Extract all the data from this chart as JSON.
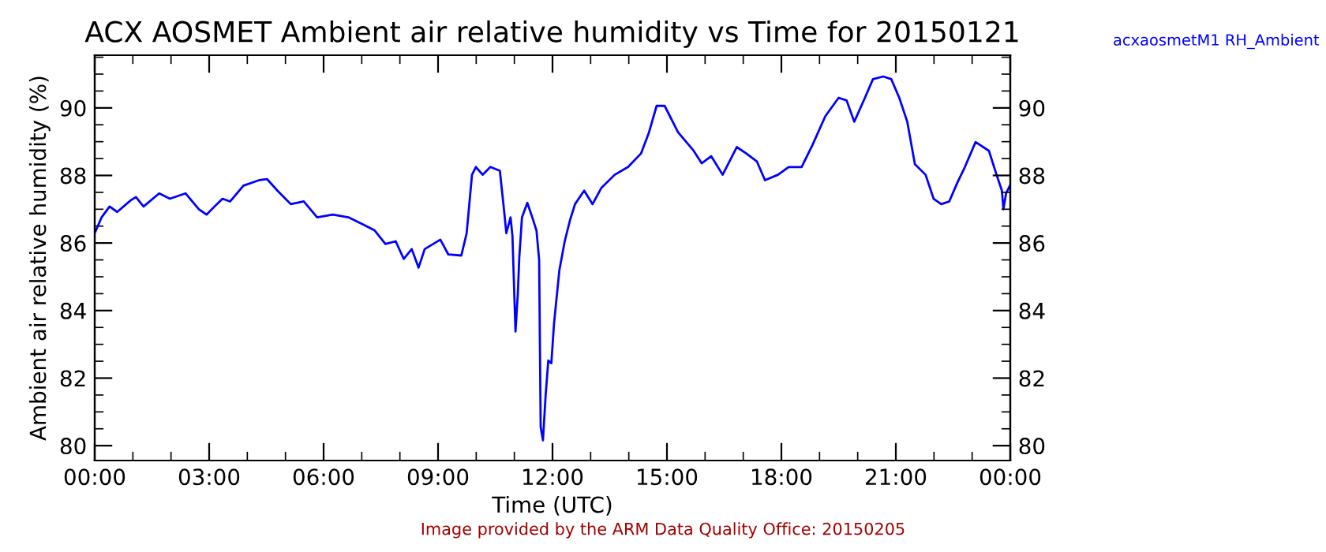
{
  "chart_data": {
    "type": "line",
    "title": "ACX AOSMET Ambient air relative humidity vs Time for 20150121",
    "xlabel": "Time (UTC)",
    "ylabel": "Ambient air relative humidity (%)",
    "annotations": [
      "Image provided by the ARM Data Quality Office: 20150205"
    ],
    "legend": "top right",
    "grid": false,
    "xlim": [
      0,
      24
    ],
    "ylim": [
      79.56,
      91.56
    ],
    "xticks": [
      {
        "value": 0,
        "label": "00:00"
      },
      {
        "value": 1,
        "label": null
      },
      {
        "value": 2,
        "label": null
      },
      {
        "value": 3,
        "label": "03:00"
      },
      {
        "value": 4,
        "label": null
      },
      {
        "value": 5,
        "label": null
      },
      {
        "value": 6,
        "label": "06:00"
      },
      {
        "value": 7,
        "label": null
      },
      {
        "value": 8,
        "label": null
      },
      {
        "value": 9,
        "label": "09:00"
      },
      {
        "value": 10,
        "label": null
      },
      {
        "value": 11,
        "label": null
      },
      {
        "value": 12,
        "label": "12:00"
      },
      {
        "value": 13,
        "label": null
      },
      {
        "value": 14,
        "label": null
      },
      {
        "value": 15,
        "label": "15:00"
      },
      {
        "value": 16,
        "label": null
      },
      {
        "value": 17,
        "label": null
      },
      {
        "value": 18,
        "label": "18:00"
      },
      {
        "value": 19,
        "label": null
      },
      {
        "value": 20,
        "label": null
      },
      {
        "value": 21,
        "label": "21:00"
      },
      {
        "value": 22,
        "label": null
      },
      {
        "value": 23,
        "label": null
      },
      {
        "value": 24,
        "label": "00:00"
      }
    ],
    "yticks": [
      80,
      {
        "value": 80.5,
        "label": null
      },
      {
        "value": 81,
        "label": null
      },
      {
        "value": 81.5,
        "label": null
      },
      82,
      {
        "value": 82.5,
        "label": null
      },
      {
        "value": 83,
        "label": null
      },
      {
        "value": 83.5,
        "label": null
      },
      84,
      {
        "value": 84.5,
        "label": null
      },
      {
        "value": 85,
        "label": null
      },
      {
        "value": 85.5,
        "label": null
      },
      86,
      {
        "value": 86.5,
        "label": null
      },
      {
        "value": 87,
        "label": null
      },
      {
        "value": 87.5,
        "label": null
      },
      88,
      {
        "value": 88.5,
        "label": null
      },
      {
        "value": 89,
        "label": null
      },
      {
        "value": 89.5,
        "label": null
      },
      90,
      {
        "value": 90.5,
        "label": null
      },
      {
        "value": 91,
        "label": null
      },
      {
        "value": 91.5,
        "label": null
      }
    ],
    "y2lim": [
      79.56,
      91.56
    ],
    "y2ticks": [
      80,
      {
        "value": 80.5,
        "label": null
      },
      {
        "value": 81,
        "label": null
      },
      {
        "value": 81.5,
        "label": null
      },
      82,
      {
        "value": 82.5,
        "label": null
      },
      {
        "value": 83,
        "label": null
      },
      {
        "value": 83.5,
        "label": null
      },
      84,
      {
        "value": 84.5,
        "label": null
      },
      {
        "value": 85,
        "label": null
      },
      {
        "value": 85.5,
        "label": null
      },
      86,
      {
        "value": 86.5,
        "label": null
      },
      {
        "value": 87,
        "label": null
      },
      {
        "value": 87.5,
        "label": null
      },
      88,
      {
        "value": 88.5,
        "label": null
      },
      {
        "value": 89,
        "label": null
      },
      {
        "value": 89.5,
        "label": null
      },
      90,
      {
        "value": 90.5,
        "label": null
      },
      {
        "value": 91,
        "label": null
      },
      {
        "value": 91.5,
        "label": null
      }
    ],
    "series": [
      {
        "name": "acxaosmetM1 RH_Ambient",
        "color": "#0000ff",
        "x": [
          0,
          0.18,
          0.39,
          0.59,
          0.94,
          1.08,
          1.28,
          1.69,
          1.97,
          2.38,
          2.73,
          2.93,
          3.14,
          3.35,
          3.55,
          3.9,
          4.31,
          4.52,
          4.79,
          5.14,
          5.48,
          5.83,
          6.24,
          6.65,
          7.07,
          7.34,
          7.62,
          7.89,
          8.1,
          8.31,
          8.49,
          8.65,
          9.06,
          9.27,
          9.61,
          9.75,
          9.89,
          9.99,
          10.17,
          10.37,
          10.62,
          10.72,
          10.79,
          10.9,
          10.95,
          11.03,
          11.09,
          11.13,
          11.2,
          11.34,
          11.47,
          11.58,
          11.65,
          11.69,
          11.75,
          11.82,
          11.89,
          11.97,
          12.04,
          12.18,
          12.32,
          12.46,
          12.59,
          12.83,
          13.05,
          13.28,
          13.63,
          13.98,
          14.32,
          14.53,
          14.73,
          14.94,
          15.29,
          15.7,
          15.91,
          16.16,
          16.46,
          16.83,
          17.08,
          17.36,
          17.57,
          17.91,
          18.19,
          18.53,
          18.81,
          19.15,
          19.5,
          19.71,
          19.91,
          20.19,
          20.4,
          20.67,
          20.88,
          21.09,
          21.3,
          21.5,
          21.78,
          21.99,
          22.19,
          22.4,
          22.61,
          22.81,
          23.09,
          23.44,
          23.64,
          23.78,
          23.82,
          23.89,
          23.99
        ],
        "values": [
          86.29,
          86.76,
          87.08,
          86.92,
          87.26,
          87.36,
          87.08,
          87.47,
          87.31,
          87.47,
          87.0,
          86.84,
          87.08,
          87.31,
          87.23,
          87.7,
          87.86,
          87.89,
          87.55,
          87.15,
          87.23,
          86.76,
          86.84,
          86.76,
          86.53,
          86.37,
          85.97,
          86.05,
          85.53,
          85.82,
          85.27,
          85.82,
          86.1,
          85.66,
          85.63,
          86.29,
          88.02,
          88.25,
          88.02,
          88.25,
          88.14,
          87.08,
          86.29,
          86.76,
          86.21,
          83.38,
          84.48,
          85.58,
          86.76,
          87.19,
          86.76,
          86.37,
          85.5,
          80.55,
          80.16,
          81.49,
          82.52,
          82.44,
          83.62,
          85.19,
          86.05,
          86.68,
          87.15,
          87.55,
          87.15,
          87.63,
          88.02,
          88.25,
          88.65,
          89.28,
          90.06,
          90.06,
          89.28,
          88.73,
          88.36,
          88.57,
          88.02,
          88.84,
          88.65,
          88.41,
          87.86,
          88.02,
          88.25,
          88.25,
          88.89,
          89.75,
          90.3,
          90.22,
          89.59,
          90.3,
          90.85,
          90.93,
          90.85,
          90.3,
          89.59,
          88.33,
          88.02,
          87.31,
          87.15,
          87.23,
          87.78,
          88.25,
          88.99,
          88.73,
          88.02,
          87.55,
          87.0,
          87.47,
          87.7
        ]
      }
    ]
  }
}
